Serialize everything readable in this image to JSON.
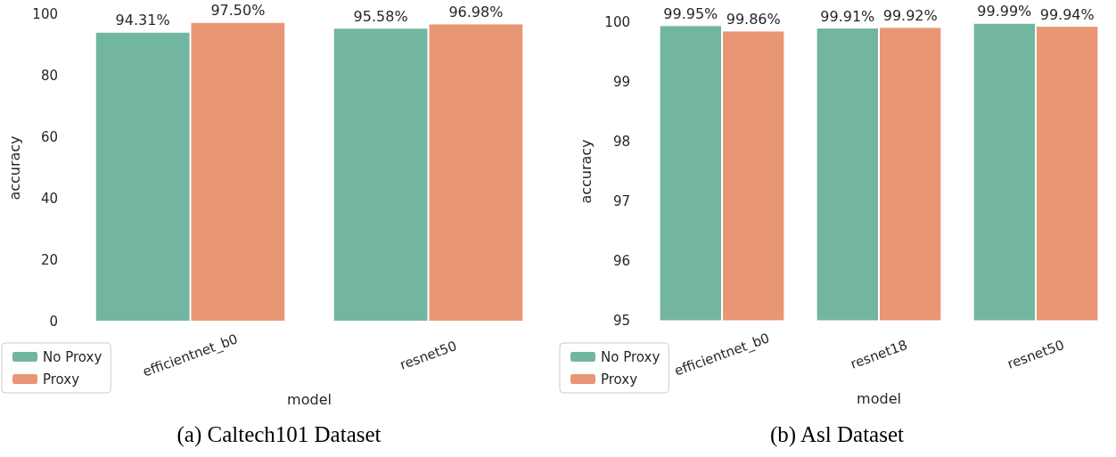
{
  "chart_data": [
    {
      "type": "bar",
      "title": "(a) Caltech101 Dataset",
      "xlabel": "model",
      "ylabel": "accuracy",
      "categories": [
        "efficientnet_b0",
        "resnet50"
      ],
      "series": [
        {
          "name": "No Proxy",
          "color": "#72b6a1",
          "values": [
            94.31,
            95.58
          ],
          "value_labels": [
            "94.31%",
            "95.58%"
          ]
        },
        {
          "name": "Proxy",
          "color": "#e99675",
          "values": [
            97.5,
            96.98
          ],
          "value_labels": [
            "97.50%",
            "96.98%"
          ]
        }
      ],
      "ylim": [
        0,
        100
      ],
      "yticks": [
        0,
        20,
        40,
        60,
        80,
        100
      ],
      "grid": false,
      "legend": "bottom left"
    },
    {
      "type": "bar",
      "title": "(b) Asl Dataset",
      "xlabel": "model",
      "ylabel": "accuracy",
      "categories": [
        "efficientnet_b0",
        "resnet18",
        "resnet50"
      ],
      "series": [
        {
          "name": "No Proxy",
          "color": "#72b6a1",
          "values": [
            99.95,
            99.91,
            99.99
          ],
          "value_labels": [
            "99.95%",
            "99.91%",
            "99.99%"
          ]
        },
        {
          "name": "Proxy",
          "color": "#e99675",
          "values": [
            99.86,
            99.92,
            99.94
          ],
          "value_labels": [
            "99.86%",
            "99.92%",
            "99.94%"
          ]
        }
      ],
      "ylim": [
        95,
        100
      ],
      "yticks": [
        95,
        96,
        97,
        98,
        99,
        100
      ],
      "grid": false,
      "legend": "bottom left"
    }
  ]
}
